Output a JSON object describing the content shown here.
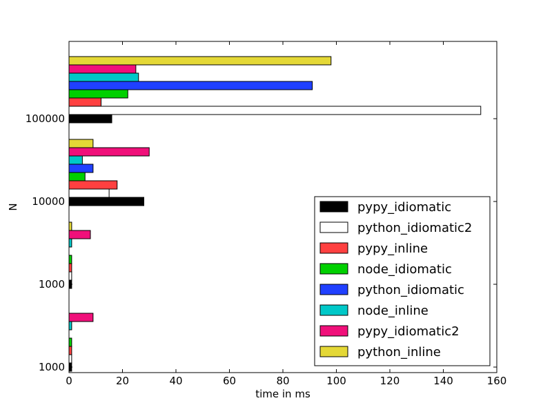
{
  "chart_data": {
    "type": "bar",
    "orientation": "horizontal",
    "title": "",
    "xlabel": "time in ms",
    "ylabel": "N",
    "xlim": [
      0,
      160
    ],
    "xticks": [
      0,
      20,
      40,
      60,
      80,
      100,
      120,
      140,
      160
    ],
    "grid": false,
    "legend_position": "lower-right",
    "categories": [
      "1000",
      "1000",
      "10000",
      "100000"
    ],
    "series": [
      {
        "name": "pypy_idiomatic",
        "color": "#000000",
        "values": [
          1,
          1,
          28,
          16
        ]
      },
      {
        "name": "python_idiomatic2",
        "color": "#ffffff",
        "values": [
          1,
          1,
          15,
          154
        ]
      },
      {
        "name": "pypy_inline",
        "color": "#ff4040",
        "values": [
          1,
          1,
          18,
          12
        ]
      },
      {
        "name": "node_idiomatic",
        "color": "#00d000",
        "values": [
          1,
          1,
          6,
          22
        ]
      },
      {
        "name": "python_idiomatic",
        "color": "#2040ff",
        "values": [
          0,
          0,
          9,
          91
        ]
      },
      {
        "name": "node_inline",
        "color": "#00c8c8",
        "values": [
          1,
          1,
          5,
          26
        ]
      },
      {
        "name": "pypy_idiomatic2",
        "color": "#f0107a",
        "values": [
          9,
          8,
          30,
          25
        ]
      },
      {
        "name": "python_inline",
        "color": "#e4d836",
        "values": [
          0,
          1,
          9,
          98
        ]
      }
    ]
  }
}
